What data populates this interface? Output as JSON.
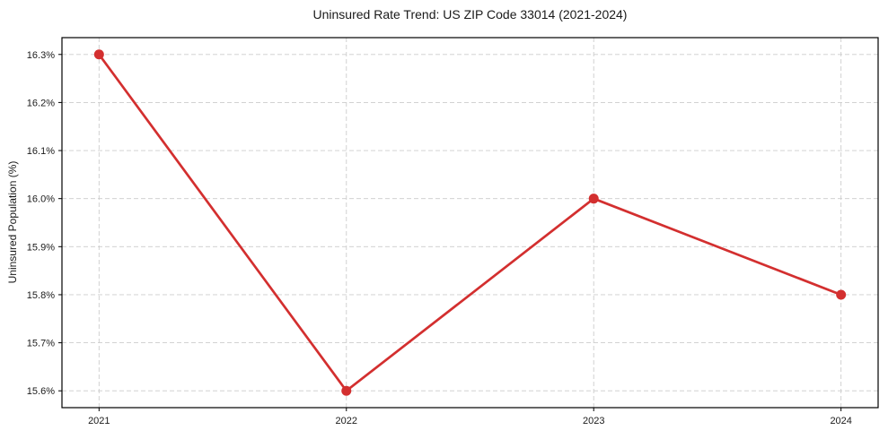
{
  "chart_data": {
    "type": "line",
    "title": "Uninsured Rate Trend: US ZIP Code 33014 (2021-2024)",
    "xlabel": "",
    "ylabel": "Uninsured Population (%)",
    "x": [
      2021,
      2022,
      2023,
      2024
    ],
    "x_tick_labels": [
      "2021",
      "2022",
      "2023",
      "2024"
    ],
    "values": [
      16.3,
      15.6,
      16.0,
      15.8
    ],
    "y_ticks": [
      15.6,
      15.7,
      15.8,
      15.9,
      16.0,
      16.1,
      16.2,
      16.3
    ],
    "y_tick_labels": [
      "15.6%",
      "15.7%",
      "15.8%",
      "15.9%",
      "16.0%",
      "16.1%",
      "16.2%",
      "16.3%"
    ],
    "xlim": [
      2020.85,
      2024.15
    ],
    "ylim": [
      15.565,
      16.335
    ],
    "grid": true,
    "grid_on": "both",
    "legend": "none",
    "line_color": "#d32f2f",
    "marker": "circle",
    "grid_color": "#cccccc",
    "axis_color": "#000000",
    "background_color": "#ffffff"
  }
}
